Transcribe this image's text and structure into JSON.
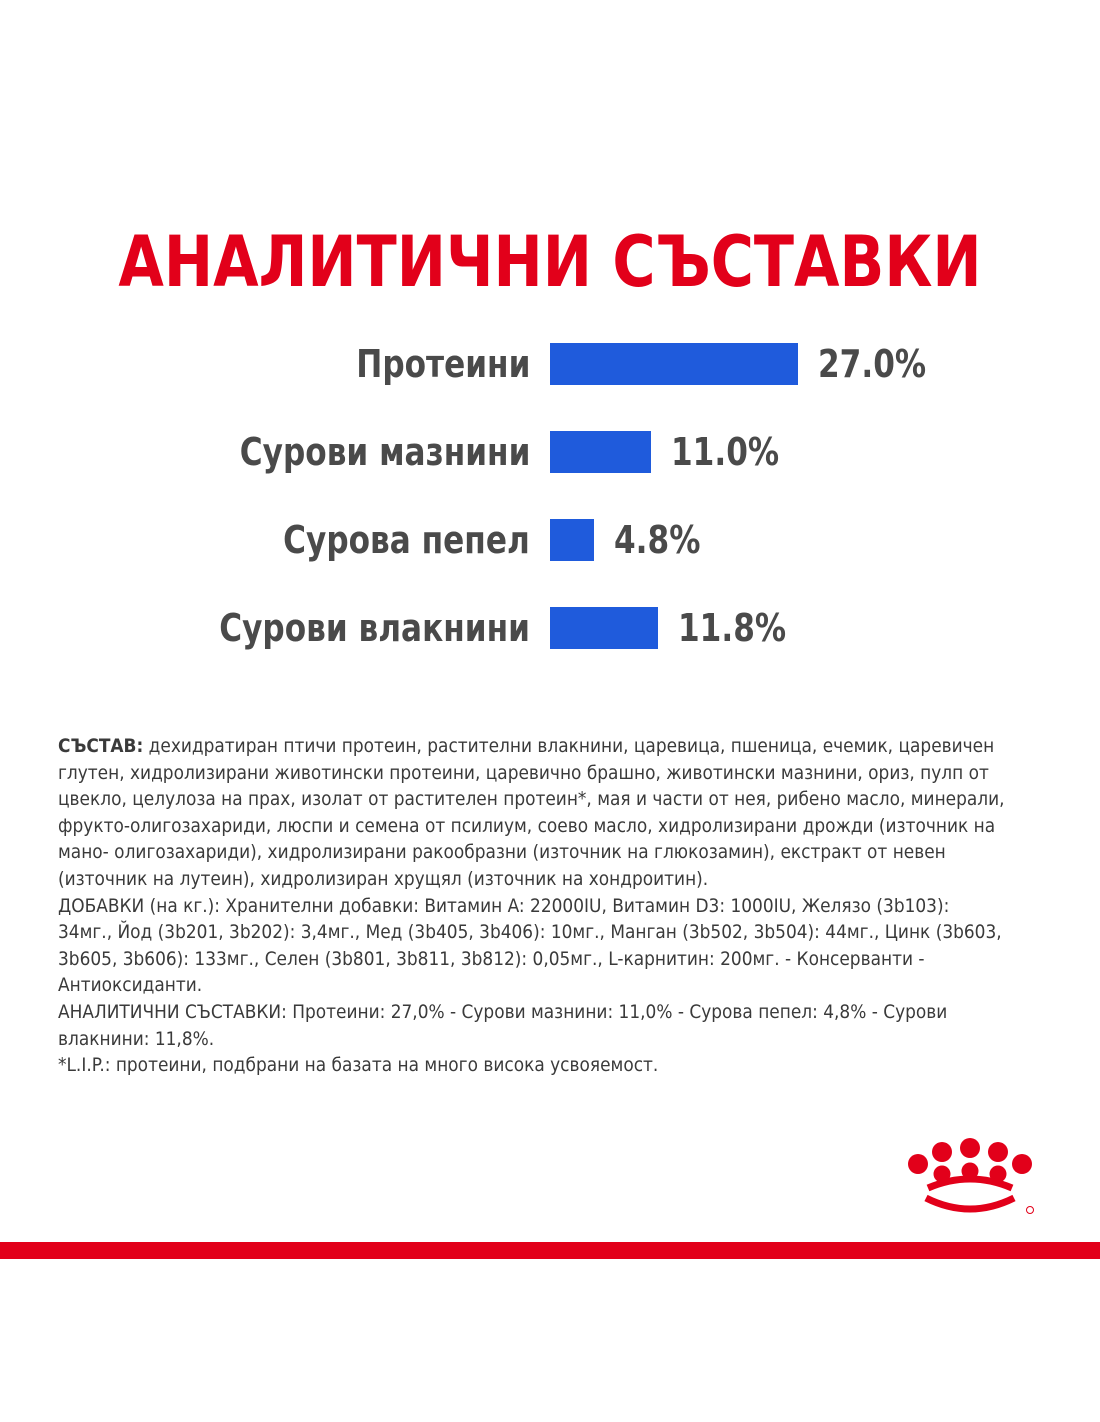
{
  "chart_data": {
    "type": "bar",
    "orientation": "horizontal",
    "title": "АНАЛИТИЧНИ СЪСТАВКИ",
    "categories": [
      "Протеини",
      "Сурови мазнини",
      "Сурова пепел",
      "Сурови влакнини"
    ],
    "values": [
      27.0,
      11.0,
      4.8,
      11.8
    ],
    "value_labels": [
      "27.0%",
      "11.0%",
      "4.8%",
      "11.8%"
    ],
    "unit": "%",
    "bar_color": "#1f5bdc",
    "grid": false
  },
  "composition": {
    "heading": "СЪСТАВ:",
    "ingredients": " дехидратиран птичи протеин, растителни влакнини, царевица, пшеница, ечемик, царевичен глутен, хидролизирани животински протеини, царевично брашно, животински мазнини, ориз, пулп от цвекло, целулоза на прах, изолат от растителен протеин*, мая и части от нея, рибено масло, минерали, фрукто-олигозахариди, люспи и семена от псилиум, соево масло, хидролизирани дрожди (източник на мано- олигозахариди), хидролизирани ракообразни (източник на глюкозамин), екстракт от невен (източник на лутеин), хидролизиран хрущял (източник на хондроитин).",
    "additives": "ДОБАВКИ (на кг.): Хранителни добавки: Витамин A: 22000IU, Витамин D3: 1000IU, Желязо (3b103): 34мг., Йод (3b201, 3b202): 3,4мг., Мед (3b405, 3b406): 10мг., Манган (3b502, 3b504): 44мг., Цинк (3b603, 3b605, 3b606): 133мг., Селен (3b801, 3b811, 3b812): 0,05мг., L-карнитин: 200мг. - Консерванти - Антиоксиданти.",
    "analytical": "АНАЛИТИЧНИ СЪСТАВКИ: Протеини: 27,0% - Сурови мазнини: 11,0% - Сурова пепел: 4,8% - Сурови влакнини: 11,8%.",
    "footnote": "*L.I.P.: протеини, подбрани на базата на много висока усвояемост."
  },
  "brand": {
    "logo_icon": "crown-icon",
    "accent_color": "#e2001a"
  }
}
